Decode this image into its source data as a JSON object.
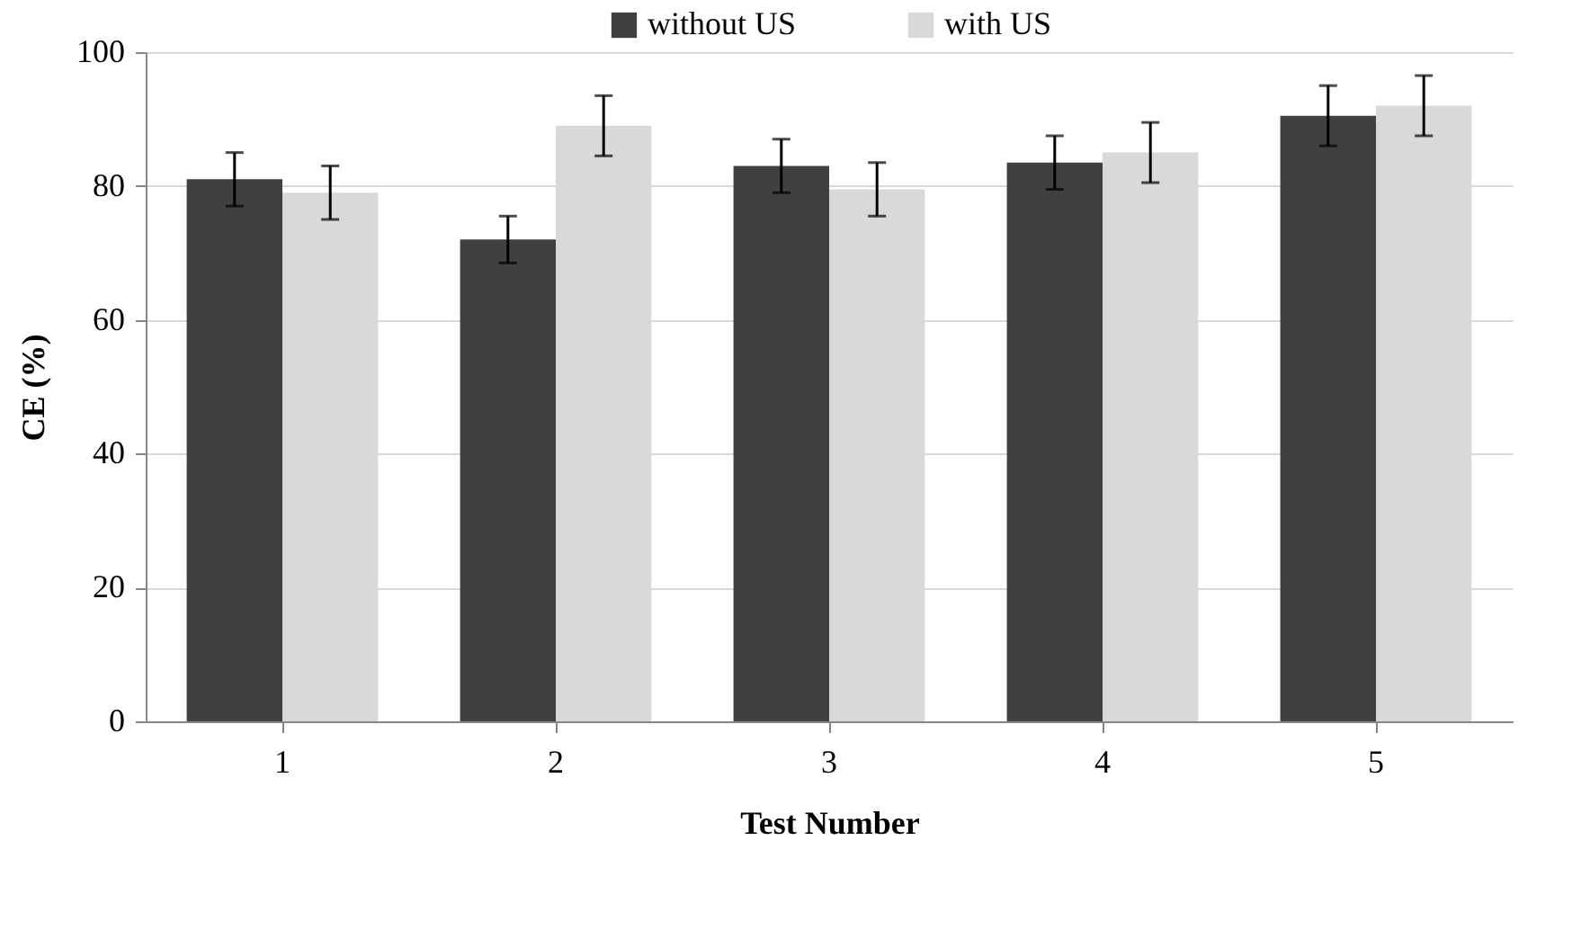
{
  "chart_data": {
    "type": "bar",
    "xlabel": "Test Number",
    "ylabel": "CE (%)",
    "categories": [
      "1",
      "2",
      "3",
      "4",
      "5"
    ],
    "series": [
      {
        "name": "without US",
        "color": "#404040",
        "values": [
          81,
          72,
          83,
          83.5,
          90.5
        ],
        "errors": [
          4,
          3.5,
          4,
          4,
          4.5
        ]
      },
      {
        "name": "with US",
        "color": "#d9d9d9",
        "values": [
          79,
          89,
          79.5,
          85,
          92
        ],
        "errors": [
          4,
          4.5,
          4,
          4.5,
          4.5
        ]
      }
    ],
    "ylim": [
      0,
      100
    ],
    "yticks": [
      0,
      20,
      40,
      60,
      80,
      100
    ],
    "grid": "y",
    "legend": "top"
  }
}
